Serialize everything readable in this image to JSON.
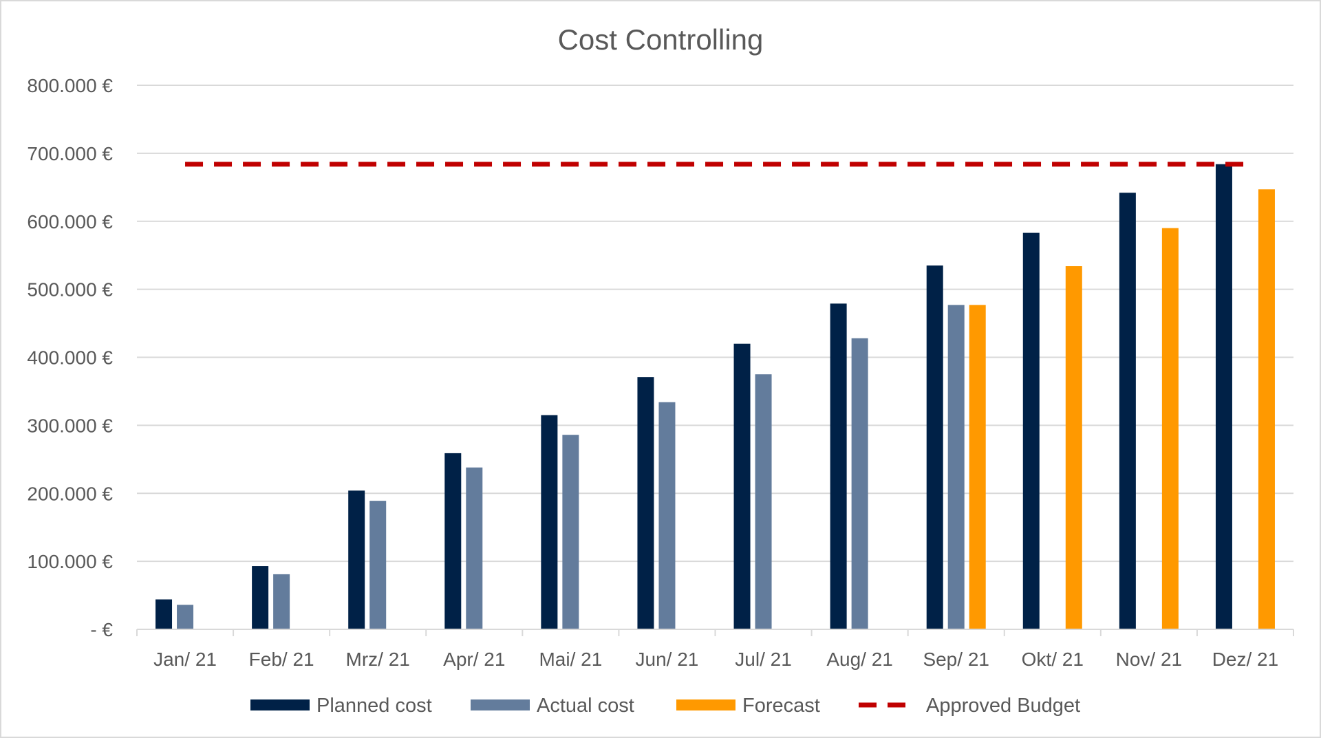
{
  "chart_data": {
    "type": "bar",
    "title": "Cost Controlling",
    "categories": [
      "Jan/ 21",
      "Feb/ 21",
      "Mrz/ 21",
      "Apr/ 21",
      "Mai/ 21",
      "Jun/ 21",
      "Jul/ 21",
      "Aug/ 21",
      "Sep/ 21",
      "Okt/ 21",
      "Nov/ 21",
      "Dez/ 21"
    ],
    "ylim": [
      0,
      800000
    ],
    "yticks": [
      0,
      100000,
      200000,
      300000,
      400000,
      500000,
      600000,
      700000,
      800000
    ],
    "ytick_labels": [
      "-  €",
      "100.000 €",
      "200.000 €",
      "300.000 €",
      "400.000 €",
      "500.000 €",
      "600.000 €",
      "700.000 €",
      "800.000 €"
    ],
    "grid": true,
    "legend_position": "bottom",
    "series": [
      {
        "name": "Planned cost",
        "color": "#002147",
        "values": [
          44000,
          93000,
          204000,
          259000,
          315000,
          371000,
          420000,
          479000,
          535000,
          583000,
          642000,
          684000
        ]
      },
      {
        "name": "Actual cost",
        "color": "#637c9c",
        "values": [
          36000,
          81000,
          189000,
          238000,
          286000,
          334000,
          375000,
          428000,
          477000,
          null,
          null,
          null
        ]
      },
      {
        "name": "Forecast",
        "color": "#ff9900",
        "values": [
          null,
          null,
          null,
          null,
          null,
          null,
          null,
          null,
          477000,
          534000,
          590000,
          647000
        ]
      }
    ],
    "reference_line": {
      "name": "Approved Budget",
      "color": "#c00000",
      "value": 684000
    }
  }
}
